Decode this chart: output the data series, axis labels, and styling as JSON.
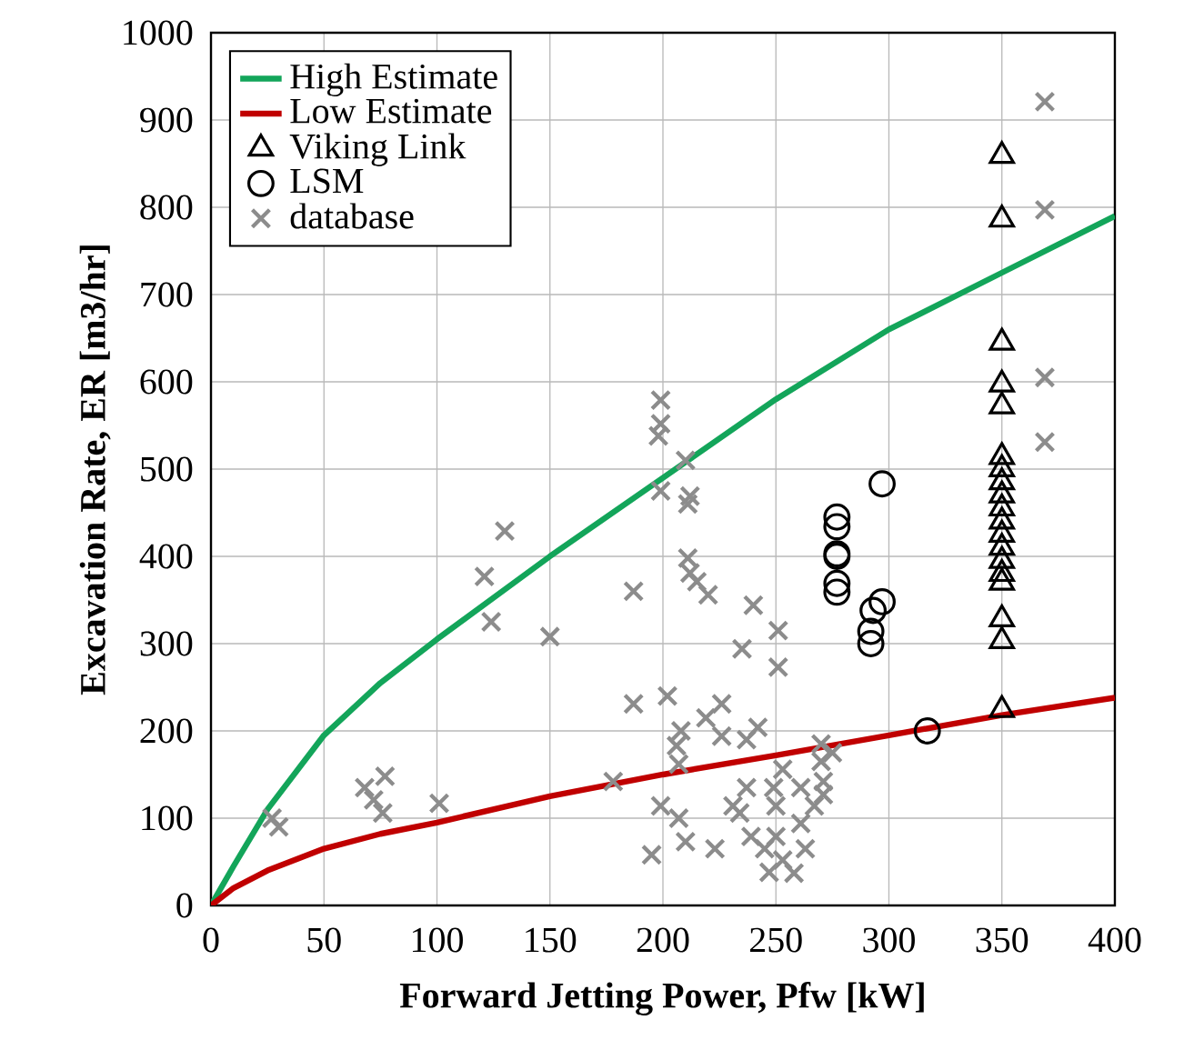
{
  "chart_data": {
    "type": "scatter",
    "xlabel": "Forward Jetting Power, Pfw [kW]",
    "ylabel": "Excavation Rate, ER [m3/hr]",
    "xlim": [
      0,
      400
    ],
    "xticks": [
      0,
      50,
      100,
      150,
      200,
      250,
      300,
      350,
      400
    ],
    "ylim": [
      0,
      1000
    ],
    "yticks": [
      0,
      100,
      200,
      300,
      400,
      500,
      600,
      700,
      800,
      900,
      1000
    ],
    "grid": true,
    "legend": "top left",
    "series": [
      {
        "name": "High Estimate",
        "type": "line",
        "color": "#13a55a",
        "marker": "none",
        "line_style": "solid",
        "x": [
          0,
          10,
          25,
          50,
          75,
          100,
          150,
          200,
          250,
          300,
          350,
          400
        ],
        "values": [
          0,
          45,
          110,
          195,
          255,
          305,
          400,
          490,
          580,
          660,
          725,
          790
        ]
      },
      {
        "name": "Low Estimate",
        "type": "line",
        "color": "#c00000",
        "marker": "none",
        "line_style": "solid",
        "x": [
          0,
          10,
          25,
          50,
          75,
          100,
          150,
          200,
          250,
          300,
          350,
          400
        ],
        "values": [
          0,
          20,
          40,
          65,
          82,
          95,
          125,
          150,
          172,
          195,
          218,
          238
        ]
      },
      {
        "name": "Viking Link",
        "color": "#000000",
        "marker": "triangle",
        "x": [
          350,
          350,
          350,
          350,
          350,
          350,
          350,
          350,
          350,
          350,
          350,
          350,
          350,
          350,
          350,
          350,
          350,
          350,
          350
        ],
        "values": [
          859,
          786,
          645,
          597,
          572,
          514,
          500,
          485,
          470,
          455,
          440,
          425,
          410,
          395,
          380,
          370,
          328,
          303,
          224
        ]
      },
      {
        "name": "LSM",
        "color": "#000000",
        "marker": "circle",
        "x": [
          277,
          277,
          277,
          277,
          277,
          277,
          297,
          297,
          293,
          292,
          292,
          317
        ],
        "values": [
          445,
          434,
          403,
          400,
          369,
          359,
          483,
          348,
          338,
          314,
          300,
          200
        ]
      },
      {
        "name": "database",
        "color": "#8c8c8c",
        "marker": "cross",
        "x": [
          27,
          30,
          68,
          77,
          72,
          76,
          101,
          130,
          121,
          124,
          150,
          199,
          199,
          198,
          210,
          199,
          212,
          211,
          211,
          212,
          215,
          187,
          220,
          240,
          251,
          235,
          251,
          187,
          202,
          226,
          219,
          208,
          206,
          207,
          242,
          237,
          226,
          270,
          275,
          270,
          178,
          253,
          249,
          261,
          271,
          199,
          207,
          195,
          210,
          223,
          239,
          234,
          250,
          245,
          253,
          258,
          247,
          263,
          271,
          267,
          261,
          250,
          237,
          231,
          369,
          369,
          369,
          369
        ],
        "values": [
          100,
          90,
          135,
          148,
          121,
          106,
          117,
          429,
          377,
          325,
          308,
          579,
          552,
          538,
          510,
          475,
          469,
          460,
          398,
          381,
          371,
          360,
          356,
          344,
          315,
          294,
          273,
          231,
          240,
          231,
          215,
          200,
          183,
          162,
          204,
          190,
          194,
          185,
          175,
          165,
          142,
          156,
          135,
          135,
          142,
          114,
          100,
          58,
          73,
          65,
          79,
          106,
          79,
          65,
          52,
          37,
          38,
          65,
          127,
          114,
          94,
          114,
          135,
          114,
          921,
          797,
          605,
          531
        ]
      }
    ]
  }
}
